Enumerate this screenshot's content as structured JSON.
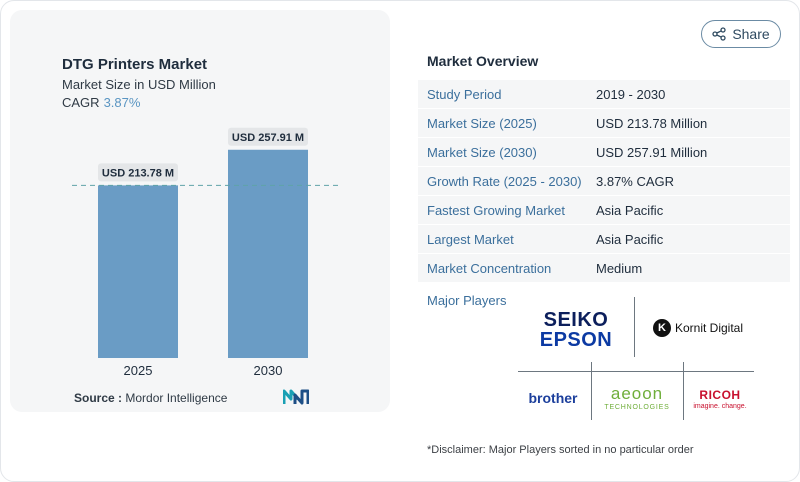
{
  "chart": {
    "title": "DTG Printers Market",
    "subtitle": "Market Size in USD Million",
    "cagr_label": "CAGR",
    "cagr_value": "3.87%",
    "source_label": "Source :",
    "source_value": "Mordor Intelligence"
  },
  "chart_data": {
    "type": "bar",
    "categories": [
      "2025",
      "2030"
    ],
    "values": [
      213.78,
      257.91
    ],
    "data_labels": [
      "USD 213.78 M",
      "USD 257.91 M"
    ],
    "title": "DTG Printers Market",
    "subtitle": "Market Size in USD Million",
    "xlabel": "",
    "ylabel": "",
    "ylim": [
      0,
      270
    ],
    "bar_color": "#6a9cc5",
    "reference_line": 213.78,
    "grid": false
  },
  "share": {
    "label": "Share",
    "icon": "share-icon"
  },
  "overview": {
    "title": "Market Overview",
    "rows": [
      {
        "key": "Study Period",
        "value": "2019 - 2030"
      },
      {
        "key": "Market Size (2025)",
        "value": "USD 213.78 Million"
      },
      {
        "key": "Market Size (2030)",
        "value": "USD 257.91 Million"
      },
      {
        "key": "Growth Rate (2025 - 2030)",
        "value": "3.87% CAGR"
      },
      {
        "key": "Fastest Growing Market",
        "value": "Asia Pacific"
      },
      {
        "key": "Largest Market",
        "value": "Asia Pacific"
      },
      {
        "key": "Market Concentration",
        "value": "Medium"
      }
    ]
  },
  "players": {
    "label": "Major Players",
    "logos": {
      "epson_line1": "SEIKO",
      "epson_line2": "EPSON",
      "kornit_mark": "K",
      "kornit_text": "Kornit Digital",
      "brother": "brother",
      "aeoon_line1": "aeoon",
      "aeoon_line2": "TECHNOLOGIES",
      "ricoh_line1": "RICOH",
      "ricoh_line2": "imagine. change."
    }
  },
  "disclaimer": "*Disclaimer: Major Players sorted in no particular order",
  "colors": {
    "accent": "#3b6f9c",
    "bar": "#6a9cc5",
    "card_bg": "#f5f6f7"
  }
}
